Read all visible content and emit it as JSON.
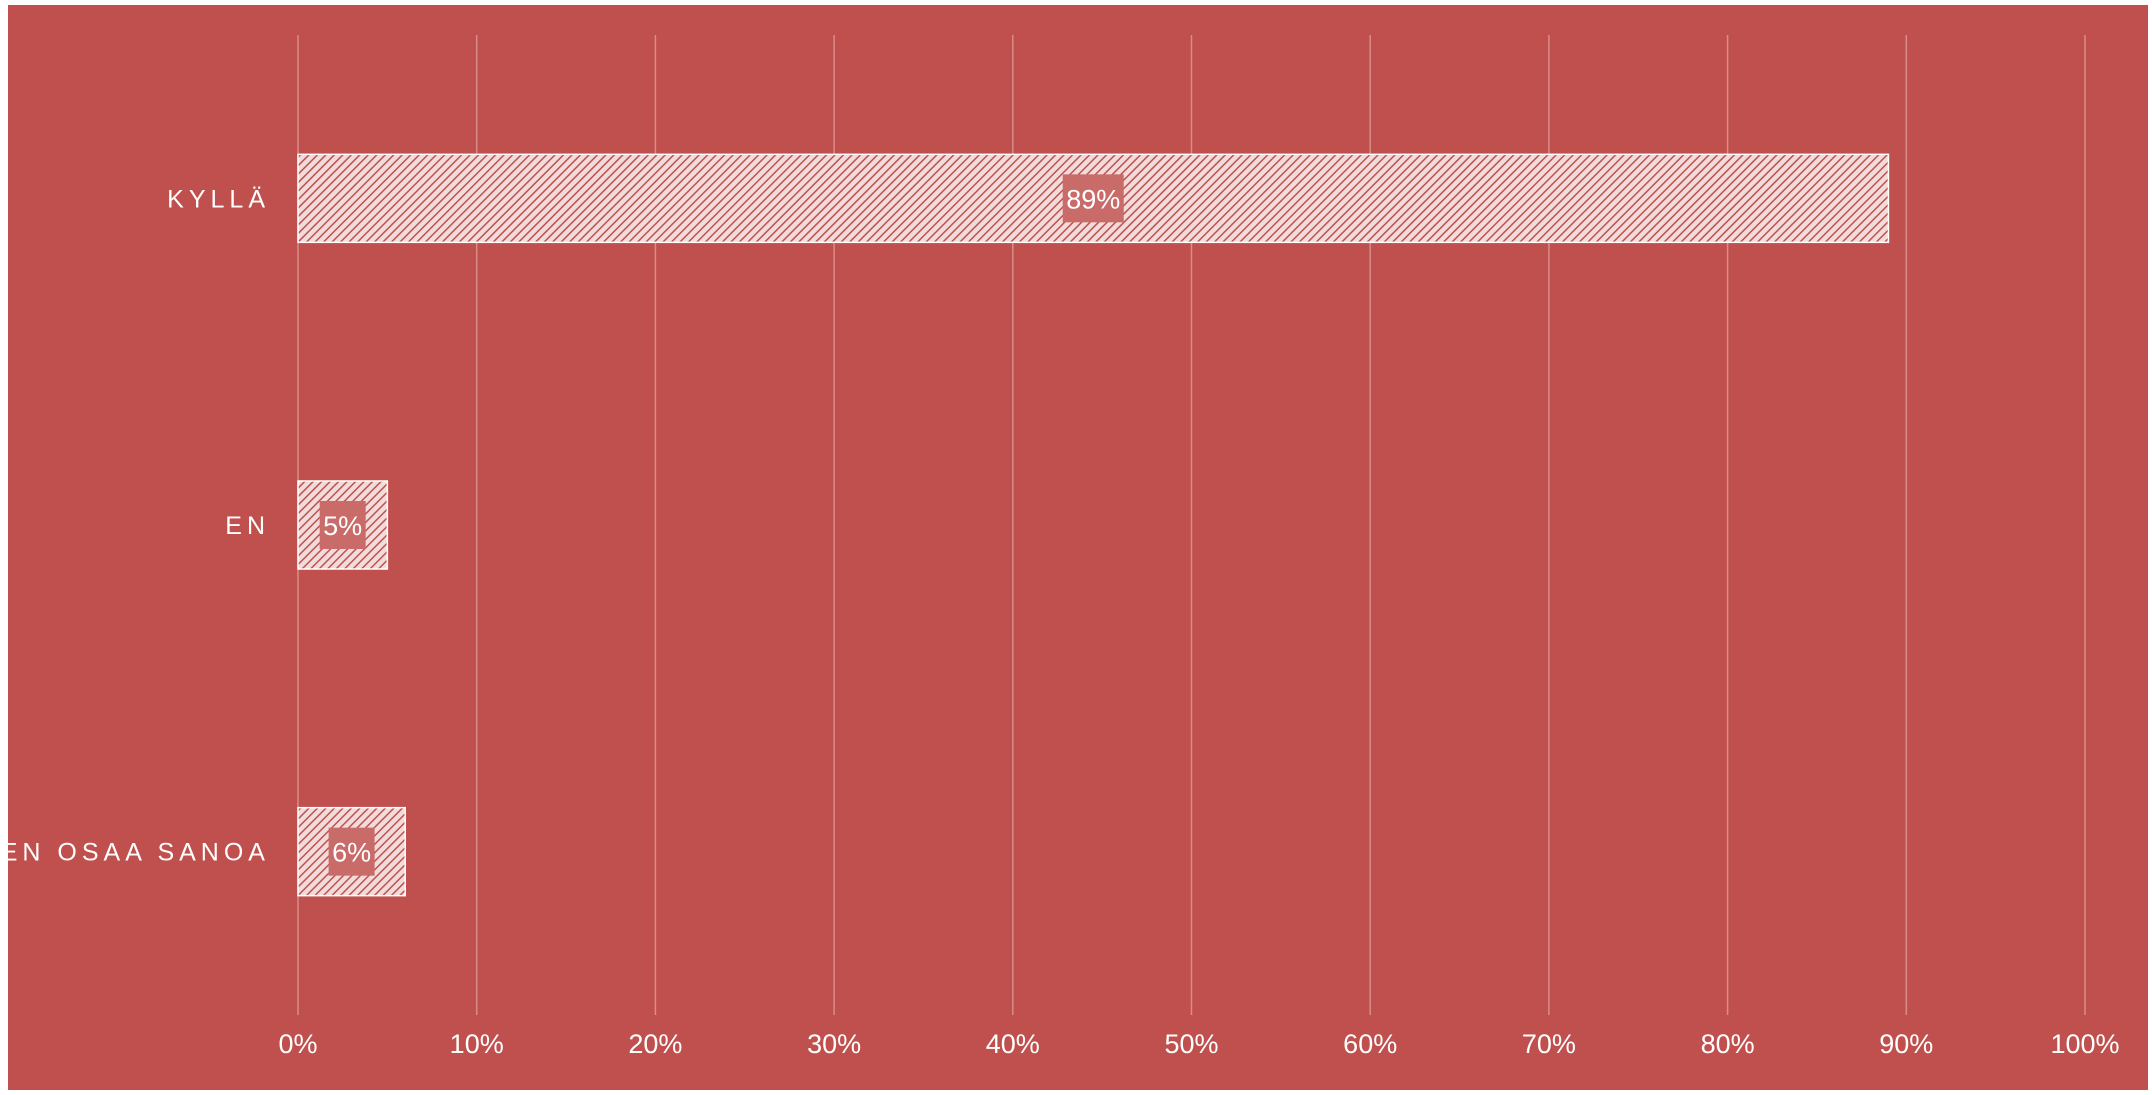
{
  "colors": {
    "background": "#C0504D",
    "gridline": "#D98C89",
    "bar_hatch_bg": "#F2DCDB",
    "bar_hatch_line": "#C0504D",
    "bar_border": "#FFFFFF",
    "data_label_bg": "#C96B69",
    "text": "#FFFFFF"
  },
  "chart_data": {
    "type": "bar",
    "orientation": "horizontal",
    "categories": [
      "KYLLÄ",
      "EN",
      "EN OSAA SANOA"
    ],
    "values": [
      89,
      5,
      6
    ],
    "data_labels": [
      "89%",
      "5%",
      "6%"
    ],
    "xlim": [
      0,
      100
    ],
    "x_ticks": [
      0,
      10,
      20,
      30,
      40,
      50,
      60,
      70,
      80,
      90,
      100
    ],
    "x_tick_labels": [
      "0%",
      "10%",
      "20%",
      "30%",
      "40%",
      "50%",
      "60%",
      "70%",
      "80%",
      "90%",
      "100%"
    ],
    "unit": "%",
    "grid": "vertical",
    "legend": "none",
    "bar_fill": "diagonal-hatch"
  }
}
